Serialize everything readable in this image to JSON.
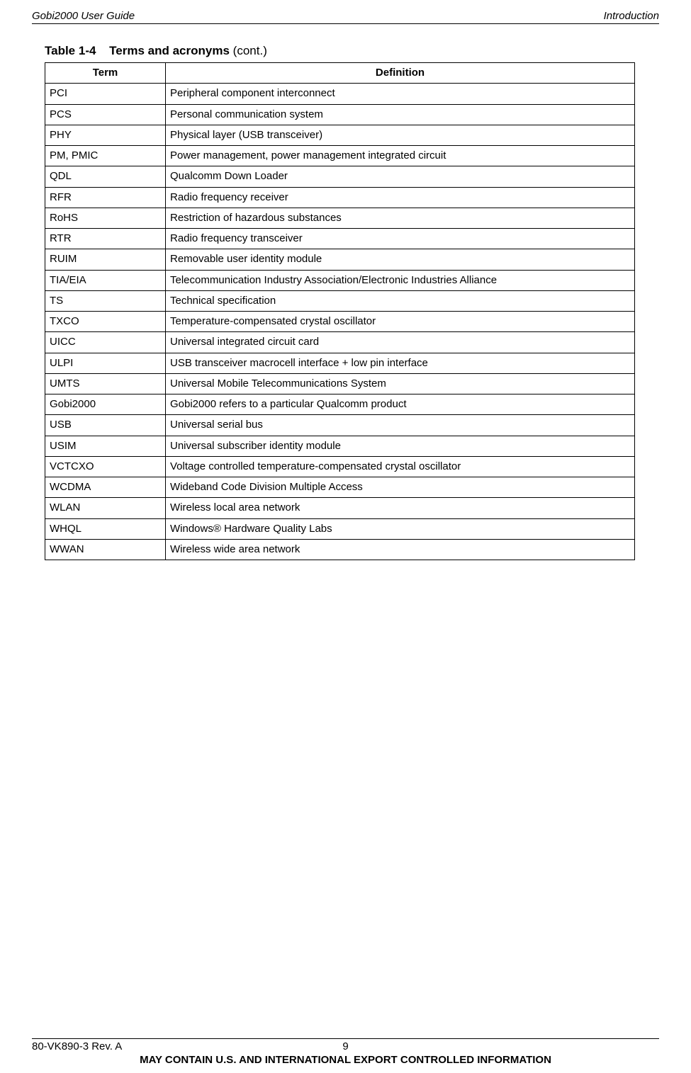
{
  "header": {
    "left": "Gobi2000 User Guide",
    "right": "Introduction"
  },
  "caption": {
    "number": "Table 1-4",
    "title": "Terms and acronyms",
    "cont": "(cont.)"
  },
  "table": {
    "col_term": "Term",
    "col_def": "Definition",
    "rows": [
      {
        "term": "PCI",
        "def": "Peripheral component interconnect"
      },
      {
        "term": "PCS",
        "def": "Personal communication system"
      },
      {
        "term": "PHY",
        "def": "Physical layer (USB transceiver)"
      },
      {
        "term": "PM, PMIC",
        "def": "Power management, power management integrated circuit"
      },
      {
        "term": "QDL",
        "def": "Qualcomm Down Loader"
      },
      {
        "term": "RFR",
        "def": "Radio frequency receiver"
      },
      {
        "term": "RoHS",
        "def": "Restriction of hazardous substances"
      },
      {
        "term": "RTR",
        "def": "Radio frequency transceiver"
      },
      {
        "term": "RUIM",
        "def": "Removable user identity module"
      },
      {
        "term": "TIA/EIA",
        "def": "Telecommunication Industry Association/Electronic Industries Alliance"
      },
      {
        "term": "TS",
        "def": "Technical specification"
      },
      {
        "term": "TXCO",
        "def": "Temperature-compensated crystal oscillator"
      },
      {
        "term": "UICC",
        "def": "Universal integrated circuit card"
      },
      {
        "term": "ULPI",
        "def": "USB transceiver macrocell interface + low pin interface"
      },
      {
        "term": "UMTS",
        "def": "Universal Mobile Telecommunications System"
      },
      {
        "term": "Gobi2000",
        "def": "Gobi2000 refers to a particular Qualcomm product"
      },
      {
        "term": "USB",
        "def": "Universal serial bus"
      },
      {
        "term": "USIM",
        "def": "Universal subscriber identity module"
      },
      {
        "term": "VCTCXO",
        "def": "Voltage controlled temperature-compensated crystal oscillator"
      },
      {
        "term": "WCDMA",
        "def": "Wideband Code Division Multiple Access"
      },
      {
        "term": "WLAN",
        "def": "Wireless local area network"
      },
      {
        "term": "WHQL",
        "def": "Windows® Hardware Quality Labs"
      },
      {
        "term": "WWAN",
        "def": "Wireless wide area network"
      }
    ]
  },
  "footer": {
    "left": "80-VK890-3 Rev. A",
    "page": "9",
    "line2": "MAY CONTAIN U.S. AND INTERNATIONAL EXPORT CONTROLLED INFORMATION"
  }
}
